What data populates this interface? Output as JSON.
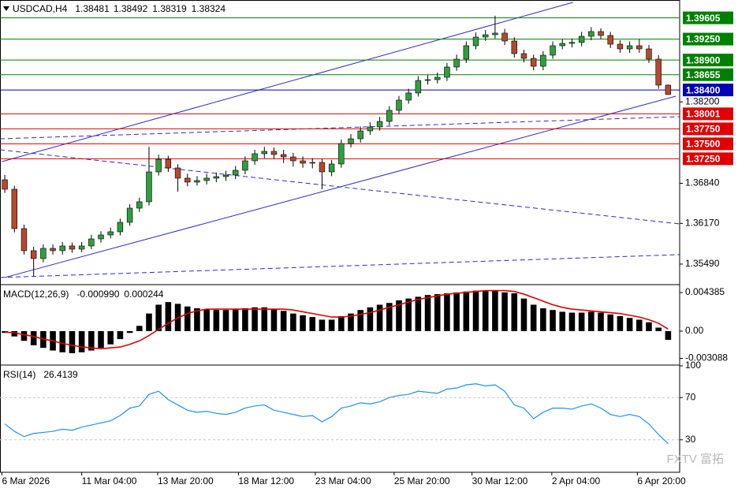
{
  "chart_data": [
    {
      "type": "candlestick",
      "title": "USDCAD,H4",
      "up_color": "#2e9e3e",
      "down_color": "#b5482e",
      "xlim": [
        -0.5,
        70.2
      ],
      "xticks": [
        {
          "value": -0.3,
          "label": "6 Mar 2026"
        },
        {
          "value": 8,
          "label": "11 Mar 04:00"
        },
        {
          "value": 15.9,
          "label": "13 Mar 20:00"
        },
        {
          "value": 24.3,
          "label": "18 Mar 12:00"
        },
        {
          "value": 32.3,
          "label": "23 Mar 04:00"
        },
        {
          "value": 40.5,
          "label": "25 Mar 20:00"
        },
        {
          "value": 48.6,
          "label": "30 Mar 12:00"
        },
        {
          "value": 56.9,
          "label": "2 Apr 04:00"
        },
        {
          "value": 65.8,
          "label": "6 Apr 20:00"
        }
      ],
      "ylim": [
        1.3516,
        1.39903
      ],
      "yticks": [
        {
          "value": 1.382,
          "label": "1.38200"
        },
        {
          "value": 1.3684,
          "label": "1.36840"
        },
        {
          "value": 1.3617,
          "label": "1.36170"
        },
        {
          "value": 1.3549,
          "label": "1.35490"
        }
      ],
      "grid": false,
      "open": [
        1.369,
        1.36741,
        1.36083,
        1.35714,
        1.35582,
        1.35753,
        1.35714,
        1.35793,
        1.3574,
        1.35793,
        1.35911,
        1.35977,
        1.3603,
        1.36188,
        1.36425,
        1.36531,
        1.37031,
        1.37242,
        1.37097,
        1.36926,
        1.3686,
        1.36886,
        1.36926,
        1.36952,
        1.36978,
        1.37058,
        1.37216,
        1.37334,
        1.37374,
        1.37321,
        1.37281,
        1.37216,
        1.37176,
        1.37189,
        1.37031,
        1.37163,
        1.37505,
        1.37584,
        1.37716,
        1.37782,
        1.37874,
        1.38059,
        1.3823,
        1.38349,
        1.38559,
        1.38572,
        1.38612,
        1.38783,
        1.38915,
        1.39139,
        1.39284,
        1.39323,
        1.3935,
        1.39218,
        1.39007,
        1.38928,
        1.38796,
        1.38981,
        1.39139,
        1.39178,
        1.39195,
        1.39297,
        1.39376,
        1.3931,
        1.39165,
        1.39086,
        1.39139,
        1.39086,
        1.38915,
        1.38481
      ],
      "high": [
        1.3698,
        1.368,
        1.3615,
        1.3578,
        1.3582,
        1.3582,
        1.3586,
        1.3585,
        1.3586,
        1.3598,
        1.3604,
        1.361,
        1.3625,
        1.3649,
        1.366,
        1.3745,
        1.3732,
        1.373,
        1.3716,
        1.37,
        1.3696,
        1.37,
        1.3702,
        1.3705,
        1.3713,
        1.3729,
        1.374,
        1.3745,
        1.3744,
        1.374,
        1.3735,
        1.3729,
        1.3726,
        1.3725,
        1.3723,
        1.3757,
        1.3766,
        1.3779,
        1.3786,
        1.3795,
        1.3813,
        1.383,
        1.3842,
        1.3863,
        1.3865,
        1.3869,
        1.3885,
        1.3899,
        1.3921,
        1.3936,
        1.394,
        1.3964,
        1.3942,
        1.3928,
        1.3907,
        1.3899,
        1.3905,
        1.3921,
        1.3925,
        1.3926,
        1.3937,
        1.3945,
        1.3943,
        1.3937,
        1.3923,
        1.3921,
        1.3925,
        1.3915,
        1.3898,
        1.38492
      ],
      "low": [
        1.3668,
        1.3602,
        1.3565,
        1.35292,
        1.3552,
        1.3565,
        1.3565,
        1.3568,
        1.3569,
        1.3574,
        1.3585,
        1.3592,
        1.3597,
        1.3613,
        1.3636,
        1.3647,
        1.3697,
        1.3703,
        1.367,
        1.3679,
        1.368,
        1.3682,
        1.3686,
        1.3688,
        1.3691,
        1.3699,
        1.3715,
        1.3726,
        1.3725,
        1.3718,
        1.3712,
        1.371,
        1.3709,
        1.36741,
        1.3696,
        1.371,
        1.3744,
        1.3752,
        1.3765,
        1.3772,
        1.3781,
        1.38,
        1.3817,
        1.3829,
        1.3849,
        1.3851,
        1.3855,
        1.3872,
        1.3885,
        1.3908,
        1.3922,
        1.3926,
        1.3915,
        1.3894,
        1.3886,
        1.3873,
        1.3873,
        1.3892,
        1.3908,
        1.3911,
        1.3913,
        1.3923,
        1.3925,
        1.391,
        1.3902,
        1.3902,
        1.3902,
        1.3885,
        1.3842,
        1.38319
      ],
      "close": [
        1.36741,
        1.36083,
        1.35714,
        1.35582,
        1.35753,
        1.35714,
        1.35793,
        1.3574,
        1.35793,
        1.35911,
        1.35977,
        1.3603,
        1.36188,
        1.36425,
        1.36531,
        1.37031,
        1.37242,
        1.37097,
        1.36926,
        1.3686,
        1.36886,
        1.36926,
        1.36952,
        1.36978,
        1.37058,
        1.37216,
        1.37334,
        1.37374,
        1.37321,
        1.37281,
        1.37216,
        1.37176,
        1.37189,
        1.37031,
        1.37163,
        1.37505,
        1.37584,
        1.37716,
        1.37782,
        1.37874,
        1.38059,
        1.3823,
        1.38349,
        1.38559,
        1.38572,
        1.38612,
        1.38783,
        1.38915,
        1.39139,
        1.39284,
        1.39323,
        1.3935,
        1.39218,
        1.39007,
        1.38928,
        1.38796,
        1.38981,
        1.39139,
        1.39178,
        1.39195,
        1.39297,
        1.39376,
        1.3931,
        1.39165,
        1.39086,
        1.39139,
        1.39086,
        1.38915,
        1.38481,
        1.38324
      ],
      "levels": [
        {
          "value": 1.39605,
          "label": "1.39605",
          "color": "#008000"
        },
        {
          "value": 1.3925,
          "label": "1.39250",
          "color": "#008000"
        },
        {
          "value": 1.389,
          "label": "1.38900",
          "color": "#008000"
        },
        {
          "value": 1.38655,
          "label": "1.38655",
          "color": "#008000"
        },
        {
          "value": 1.384,
          "label": "1.38400",
          "color": "#0000b4"
        },
        {
          "value": 1.38001,
          "label": "1.38001",
          "color": "#e00000"
        },
        {
          "value": 1.3775,
          "label": "1.37750",
          "color": "#e00000"
        },
        {
          "value": 1.375,
          "label": "1.37500",
          "color": "#e00000"
        },
        {
          "value": 1.3725,
          "label": "1.37250",
          "color": "#e00000"
        }
      ],
      "trendlines": [
        {
          "style": "solid",
          "color": "#2a2ad0",
          "points": [
            {
              "x": -0.3,
              "y": 1.37202
            },
            {
              "x": 59.1,
              "y": 1.39863
            }
          ]
        },
        {
          "style": "solid",
          "color": "#2a2ad0",
          "points": [
            {
              "x": 0,
              "y": 1.35266
            },
            {
              "x": 69.8,
              "y": 1.38296
            }
          ]
        },
        {
          "style": "dashed",
          "color": "#2a2ad0",
          "points": [
            {
              "x": -0.5,
              "y": 1.37584
            },
            {
              "x": 70.2,
              "y": 1.37953
            }
          ]
        },
        {
          "style": "dashed",
          "color": "#2a2ad0",
          "points": [
            {
              "x": -0.5,
              "y": 1.374
            },
            {
              "x": 70.2,
              "y": 1.36162
            }
          ]
        },
        {
          "style": "dashed",
          "color": "#2a2ad0",
          "points": [
            {
              "x": -0.5,
              "y": 1.35266
            },
            {
              "x": 70.2,
              "y": 1.35648
            }
          ]
        }
      ]
    },
    {
      "type": "macd",
      "title": "MACD(12,26,9)",
      "last_labels": [
        "-0.000990",
        "0.000244"
      ],
      "color": "#000000",
      "signal_color": "#e00000",
      "ylim": [
        -0.00376,
        0.00519
      ],
      "yticks": [
        0.004385,
        {
          "value": 0,
          "label": "0.00"
        },
        -0.003088
      ],
      "histogram": [
        -0.0002,
        -0.0006,
        -0.0011,
        -0.0016,
        -0.0019,
        -0.0022,
        -0.0024,
        -0.0025,
        -0.0024,
        -0.0022,
        -0.0019,
        -0.0015,
        -0.0009,
        -0.0002,
        0.0006,
        0.002,
        0.003,
        0.0033,
        0.0031,
        0.0028,
        0.0026,
        0.0025,
        0.0024,
        0.0024,
        0.0025,
        0.0026,
        0.0027,
        0.0027,
        0.0025,
        0.0023,
        0.002,
        0.0018,
        0.0016,
        0.0013,
        0.0013,
        0.0017,
        0.002,
        0.0024,
        0.0027,
        0.003,
        0.0032,
        0.0035,
        0.0037,
        0.0039,
        0.0041,
        0.0042,
        0.0043,
        0.0044,
        0.0045,
        0.0046,
        0.0046,
        0.0046,
        0.0044,
        0.0043,
        0.0037,
        0.003,
        0.0026,
        0.0024,
        0.0022,
        0.0021,
        0.0021,
        0.0022,
        0.0021,
        0.0019,
        0.0017,
        0.0015,
        0.0013,
        0.001,
        0.0004,
        -0.00099
      ],
      "signal": [
        -0.0001,
        -0.0002,
        -0.0004,
        -0.0006,
        -0.0009,
        -0.0011,
        -0.0014,
        -0.0016,
        -0.0018,
        -0.0019,
        -0.002,
        -0.0019,
        -0.0018,
        -0.0015,
        -0.0011,
        -0.0005,
        0.0002,
        0.0009,
        0.0015,
        0.002,
        0.0023,
        0.0025,
        0.0025,
        0.0025,
        0.0025,
        0.0025,
        0.0025,
        0.0025,
        0.0025,
        0.0025,
        0.0024,
        0.0022,
        0.002,
        0.0018,
        0.0016,
        0.0016,
        0.0017,
        0.0019,
        0.0021,
        0.0024,
        0.0027,
        0.003,
        0.0033,
        0.0036,
        0.0038,
        0.004,
        0.0042,
        0.0043,
        0.0044,
        0.0045,
        0.0046,
        0.0046,
        0.0046,
        0.0045,
        0.0042,
        0.0038,
        0.0034,
        0.003,
        0.0027,
        0.0025,
        0.0024,
        0.0023,
        0.0022,
        0.0021,
        0.002,
        0.0018,
        0.0016,
        0.0013,
        0.0009,
        0.000244
      ]
    },
    {
      "type": "line",
      "title": "RSI(14)",
      "color": "#1e90ff",
      "grid": true,
      "ylim": [
        0,
        100
      ],
      "yticks": [
        100,
        70,
        30
      ],
      "values": [
        45,
        38,
        33,
        36,
        37,
        38,
        40,
        39,
        42,
        44,
        46,
        48,
        53,
        60,
        62,
        73,
        76,
        68,
        63,
        58,
        56,
        57,
        55,
        54,
        56,
        60,
        62,
        63,
        58,
        56,
        54,
        52,
        53,
        47,
        52,
        60,
        62,
        65,
        64,
        66,
        70,
        72,
        73,
        76,
        75,
        74,
        78,
        79,
        82,
        83,
        81,
        82,
        76,
        63,
        60,
        50,
        56,
        60,
        60,
        59,
        62,
        64,
        60,
        54,
        52,
        54,
        52,
        45,
        35,
        26.4139
      ]
    }
  ],
  "watermark": "FXTV 富拓"
}
